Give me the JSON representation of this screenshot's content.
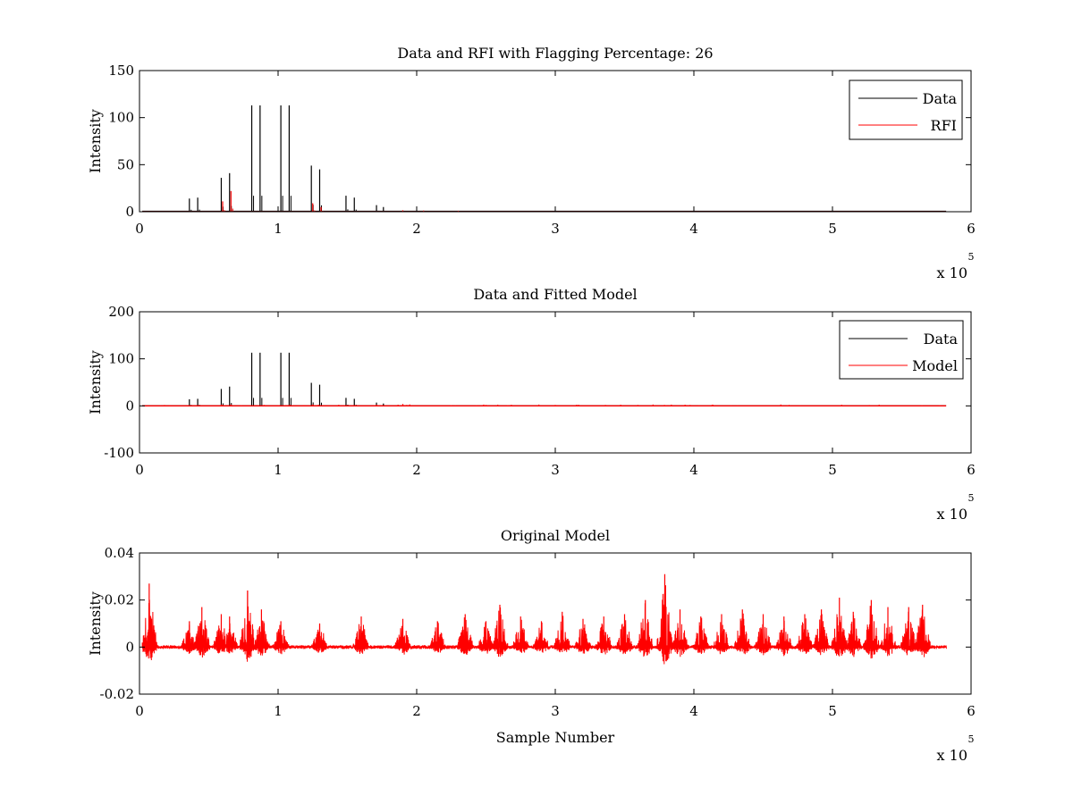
{
  "chart_data": [
    {
      "type": "line",
      "title": "Data and RFI with Flagging Percentage: 26",
      "xlabel": "",
      "ylabel": "Intensity",
      "xlim": [
        0,
        6
      ],
      "ylim": [
        0,
        150
      ],
      "x_multiplier": "x 10",
      "x_exponent": "5",
      "xticks": [
        "0",
        "1",
        "2",
        "3",
        "4",
        "5",
        "6"
      ],
      "yticks": [
        "0",
        "50",
        "100",
        "150"
      ],
      "grid": false,
      "legend_position": "top-right",
      "legend": [
        "Data",
        "RFI"
      ],
      "series": [
        {
          "name": "Data",
          "color": "#000000",
          "spikes": [
            [
              0.36,
              14
            ],
            [
              0.42,
              15
            ],
            [
              0.59,
              36
            ],
            [
              0.65,
              41
            ],
            [
              0.81,
              113
            ],
            [
              0.87,
              113
            ],
            [
              1.02,
              113
            ],
            [
              1.08,
              113
            ],
            [
              1.24,
              49
            ],
            [
              1.3,
              45
            ],
            [
              1.49,
              17
            ],
            [
              1.55,
              15
            ],
            [
              1.71,
              7
            ],
            [
              1.76,
              5
            ]
          ],
          "baseline": 0.5
        },
        {
          "name": "RFI",
          "color": "#ff0000",
          "spikes": [
            [
              0.6,
              11
            ],
            [
              0.66,
              22
            ],
            [
              1.25,
              9
            ],
            [
              1.31,
              5
            ],
            [
              1.9,
              1.5
            ],
            [
              2.05,
              1.2
            ],
            [
              2.3,
              1
            ]
          ],
          "baseline": 0
        }
      ]
    },
    {
      "type": "line",
      "title": "Data and Fitted Model",
      "xlabel": "",
      "ylabel": "Intensity",
      "xlim": [
        0,
        6
      ],
      "ylim": [
        -100,
        200
      ],
      "x_multiplier": "x 10",
      "x_exponent": "5",
      "xticks": [
        "0",
        "1",
        "2",
        "3",
        "4",
        "5",
        "6"
      ],
      "yticks": [
        "-100",
        "0",
        "100",
        "200"
      ],
      "grid": false,
      "legend_position": "top-right",
      "legend": [
        "Data",
        "Model"
      ],
      "series": [
        {
          "name": "Data",
          "color": "#000000",
          "spikes": [
            [
              0.36,
              14
            ],
            [
              0.42,
              15
            ],
            [
              0.59,
              36
            ],
            [
              0.65,
              41
            ],
            [
              0.81,
              113
            ],
            [
              0.87,
              113
            ],
            [
              1.02,
              113
            ],
            [
              1.08,
              113
            ],
            [
              1.24,
              49
            ],
            [
              1.3,
              45
            ],
            [
              1.49,
              17
            ],
            [
              1.55,
              15
            ],
            [
              1.71,
              7
            ],
            [
              1.76,
              5
            ]
          ],
          "baseline": 0.5
        },
        {
          "name": "Model",
          "color": "#ff0000",
          "spikes": [
            [
              0.6,
              2
            ],
            [
              0.66,
              3
            ],
            [
              0.9,
              2
            ],
            [
              1.25,
              3
            ],
            [
              1.9,
              4
            ],
            [
              1.95,
              3
            ],
            [
              2.5,
              2
            ],
            [
              3.0,
              2
            ]
          ],
          "baseline": 0
        }
      ]
    },
    {
      "type": "line",
      "title": "Original Model",
      "xlabel": "Sample Number",
      "ylabel": "Intensity",
      "xlim": [
        0,
        6
      ],
      "ylim": [
        -0.02,
        0.04
      ],
      "x_multiplier": "x 10",
      "x_exponent": "5",
      "xticks": [
        "0",
        "1",
        "2",
        "3",
        "4",
        "5",
        "6"
      ],
      "yticks": [
        "-0.02",
        "0",
        "0.02",
        "0.04"
      ],
      "grid": false,
      "legend_position": "none",
      "legend": [],
      "series": [
        {
          "name": "",
          "color": "#ff0000",
          "x_range": [
            0.02,
            5.82
          ],
          "peaks": [
            [
              0.07,
              0.027
            ],
            [
              0.36,
              0.011
            ],
            [
              0.45,
              0.017
            ],
            [
              0.59,
              0.014
            ],
            [
              0.65,
              0.013
            ],
            [
              0.78,
              0.024
            ],
            [
              0.88,
              0.016
            ],
            [
              1.02,
              0.011
            ],
            [
              1.3,
              0.01
            ],
            [
              1.6,
              0.013
            ],
            [
              1.9,
              0.012
            ],
            [
              2.15,
              0.011
            ],
            [
              2.35,
              0.014
            ],
            [
              2.5,
              0.011
            ],
            [
              2.6,
              0.018
            ],
            [
              2.75,
              0.013
            ],
            [
              2.9,
              0.011
            ],
            [
              3.05,
              0.015
            ],
            [
              3.2,
              0.012
            ],
            [
              3.35,
              0.013
            ],
            [
              3.5,
              0.014
            ],
            [
              3.65,
              0.02
            ],
            [
              3.79,
              0.031
            ],
            [
              3.9,
              0.016
            ],
            [
              4.05,
              0.013
            ],
            [
              4.2,
              0.014
            ],
            [
              4.35,
              0.016
            ],
            [
              4.5,
              0.014
            ],
            [
              4.65,
              0.013
            ],
            [
              4.8,
              0.014
            ],
            [
              4.92,
              0.016
            ],
            [
              5.05,
              0.021
            ],
            [
              5.15,
              0.015
            ],
            [
              5.28,
              0.02
            ],
            [
              5.4,
              0.017
            ],
            [
              5.55,
              0.017
            ],
            [
              5.65,
              0.018
            ]
          ]
        }
      ]
    }
  ]
}
